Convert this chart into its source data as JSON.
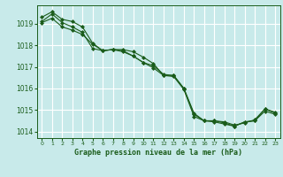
{
  "title": "Graphe pression niveau de la mer (hPa)",
  "background_color": "#c8eaea",
  "grid_color": "#ffffff",
  "line_color": "#1a5c1a",
  "marker_color": "#1a5c1a",
  "xlim": [
    -0.5,
    23.5
  ],
  "ylim": [
    1013.7,
    1019.85
  ],
  "yticks": [
    1014,
    1015,
    1016,
    1017,
    1018,
    1019
  ],
  "xticks": [
    0,
    1,
    2,
    3,
    4,
    5,
    6,
    7,
    8,
    9,
    10,
    11,
    12,
    13,
    14,
    15,
    16,
    17,
    18,
    19,
    20,
    21,
    22,
    23
  ],
  "series": [
    [
      1019.3,
      1019.55,
      1019.2,
      1019.1,
      1018.85,
      1018.1,
      1017.75,
      1017.8,
      1017.8,
      1017.7,
      1017.45,
      1017.15,
      1016.6,
      1016.6,
      1016.0,
      1014.85,
      1014.5,
      1014.5,
      1014.45,
      1014.3,
      1014.4,
      1014.55,
      1015.05,
      1014.85
    ],
    [
      1019.1,
      1019.45,
      1019.05,
      1018.85,
      1018.6,
      1017.85,
      1017.75,
      1017.8,
      1017.7,
      1017.5,
      1017.2,
      1016.95,
      1016.6,
      1016.55,
      1015.95,
      1014.7,
      1014.5,
      1014.45,
      1014.35,
      1014.25,
      1014.45,
      1014.5,
      1014.95,
      1014.8
    ],
    [
      1019.05,
      1019.25,
      1018.85,
      1018.7,
      1018.5,
      1018.05,
      1017.75,
      1017.8,
      1017.75,
      1017.5,
      1017.2,
      1017.05,
      1016.65,
      1016.6,
      1016.0,
      1014.8,
      1014.5,
      1014.5,
      1014.4,
      1014.25,
      1014.45,
      1014.5,
      1015.05,
      1014.9
    ]
  ]
}
